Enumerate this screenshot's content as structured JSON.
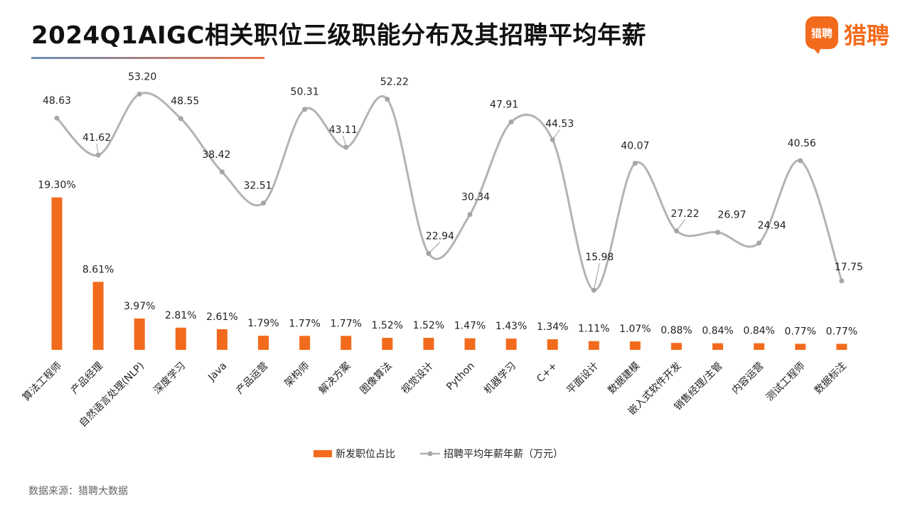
{
  "title": "2024Q1AIGC相关职位三级职能分布及其招聘平均年薪",
  "logo": {
    "badge": "猎聘",
    "text": "猎聘"
  },
  "source": "数据来源：猎聘大数据",
  "colors": {
    "bar": "#f26b1d",
    "line": "#b3b3b3",
    "line_marker": "#a6a6a6",
    "title_underline_start": "#6a8fb8",
    "title_underline_end": "#e8734a"
  },
  "chart_data": {
    "type": "bar",
    "legend_position": "bottom",
    "grid": false,
    "categories": [
      "算法工程师",
      "产品经理",
      "自然语言处理(NLP)",
      "深度学习",
      "Java",
      "产品运营",
      "架构师",
      "解决方案",
      "图像算法",
      "视觉设计",
      "Python",
      "机器学习",
      "C++",
      "平面设计",
      "数据建模",
      "嵌入式软件开发",
      "销售经理/主管",
      "内容运营",
      "测试工程师",
      "数据标注"
    ],
    "series": [
      {
        "name": "新发职位占比",
        "type": "bar",
        "values": [
          19.3,
          8.61,
          3.97,
          2.81,
          2.61,
          1.79,
          1.77,
          1.77,
          1.52,
          1.52,
          1.47,
          1.43,
          1.34,
          1.11,
          1.07,
          0.88,
          0.84,
          0.84,
          0.77,
          0.77
        ],
        "labels": [
          "19.30%",
          "8.61%",
          "3.97%",
          "2.81%",
          "2.61%",
          "1.79%",
          "1.77%",
          "1.77%",
          "1.52%",
          "1.52%",
          "1.47%",
          "1.43%",
          "1.34%",
          "1.11%",
          "1.07%",
          "0.88%",
          "0.84%",
          "0.84%",
          "0.77%",
          "0.77%"
        ]
      },
      {
        "name": "招聘平均年薪年薪（万元）",
        "type": "line",
        "smooth": true,
        "values": [
          48.63,
          41.62,
          53.2,
          48.55,
          38.42,
          32.51,
          50.31,
          43.11,
          52.22,
          22.94,
          30.34,
          47.91,
          44.53,
          15.98,
          40.07,
          27.22,
          26.97,
          24.94,
          40.56,
          17.75
        ],
        "labels": [
          "48.63",
          "41.62",
          "53.20",
          "48.55",
          "38.42",
          "32.51",
          "50.31",
          "43.11",
          "52.22",
          "22.94",
          "30.34",
          "47.91",
          "44.53",
          "15.98",
          "40.07",
          "27.22",
          "26.97",
          "24.94",
          "40.56",
          "17.75"
        ]
      }
    ]
  }
}
